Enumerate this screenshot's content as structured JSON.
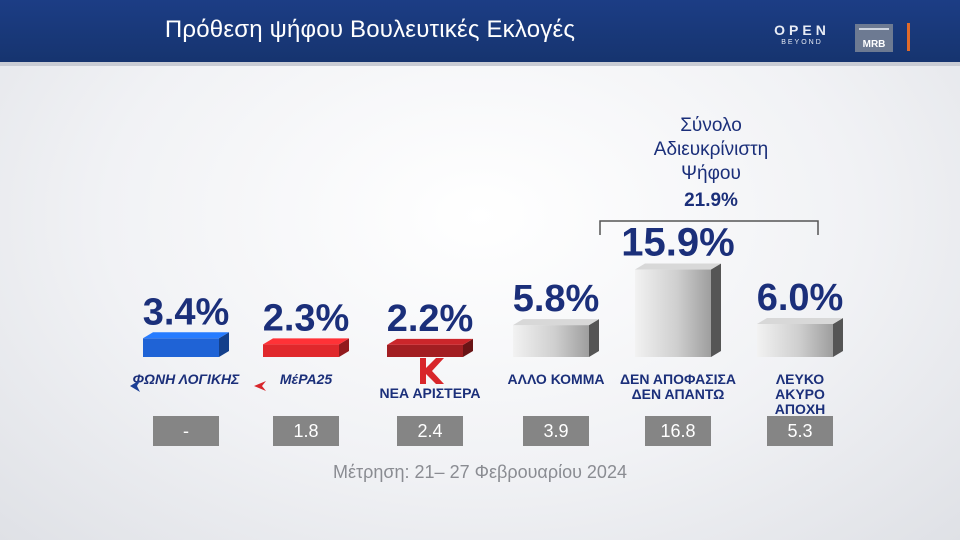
{
  "header": {
    "title": "Πρόθεση ψήφου Βουλευτικές Εκλογές",
    "logo_open": "OPEN",
    "logo_open_sub": "BEYOND",
    "logo_mrb": "MRB"
  },
  "chart_data": {
    "type": "bar",
    "title": "Πρόθεση ψήφου Βουλευτικές Εκλογές",
    "categories": [
      "ΦΩΝΗ ΛΟΓΙΚΗΣ",
      "ΜέΡΑ25",
      "ΝΕΑ ΑΡΙΣΤΕΡΑ",
      "ΑΛΛΟ ΚΟΜΜΑ",
      "ΔΕΝ ΑΠΟΦΑΣΙΣΑ ΔΕΝ ΑΠΑΝΤΩ",
      "ΛΕΥΚΟ ΑΚΥΡΟ ΑΠΟΧΗ"
    ],
    "series": [
      {
        "values": [
          3.4,
          2.3,
          2.2,
          5.8,
          15.9,
          6.0
        ]
      },
      {
        "values": [
          null,
          1.8,
          2.4,
          3.9,
          16.8,
          5.3
        ]
      }
    ],
    "value_labels": [
      "3.4%",
      "2.3%",
      "2.2%",
      "5.8%",
      "15.9%",
      "6.0%"
    ],
    "previous_labels": [
      "-",
      "1.8",
      "2.4",
      "3.9",
      "16.8",
      "5.3"
    ],
    "bar_colors": [
      "#1f63d6",
      "#e0282c",
      "#a21e22",
      "#8c8c8c",
      "#8c8c8c",
      "#8c8c8c"
    ],
    "category_lines": [
      [
        "ΦΩΝΗ ΛΟΓΙΚΗΣ"
      ],
      [
        "ΜέΡΑ25"
      ],
      [
        "ΝΕΑ ΑΡΙΣΤΕΡΑ"
      ],
      [
        "ΑΛΛΟ ΚΟΜΜΑ"
      ],
      [
        "ΔΕΝ ΑΠΟΦΑΣΙΣΑ",
        "ΔΕΝ ΑΠΑΝΤΩ"
      ],
      [
        "ΛΕΥΚΟ",
        "ΑΚΥΡΟ",
        "ΑΠΟΧΗ"
      ]
    ],
    "group": {
      "label_lines": [
        "Σύνολο",
        "Αδιευκρίνιστη",
        "Ψήφου"
      ],
      "value": "21.9%",
      "members": [
        4,
        5
      ]
    },
    "grid": false,
    "legend": "none"
  },
  "footer": {
    "note": "Μέτρηση: 21– 27 Φεβρουαρίου 2024"
  }
}
